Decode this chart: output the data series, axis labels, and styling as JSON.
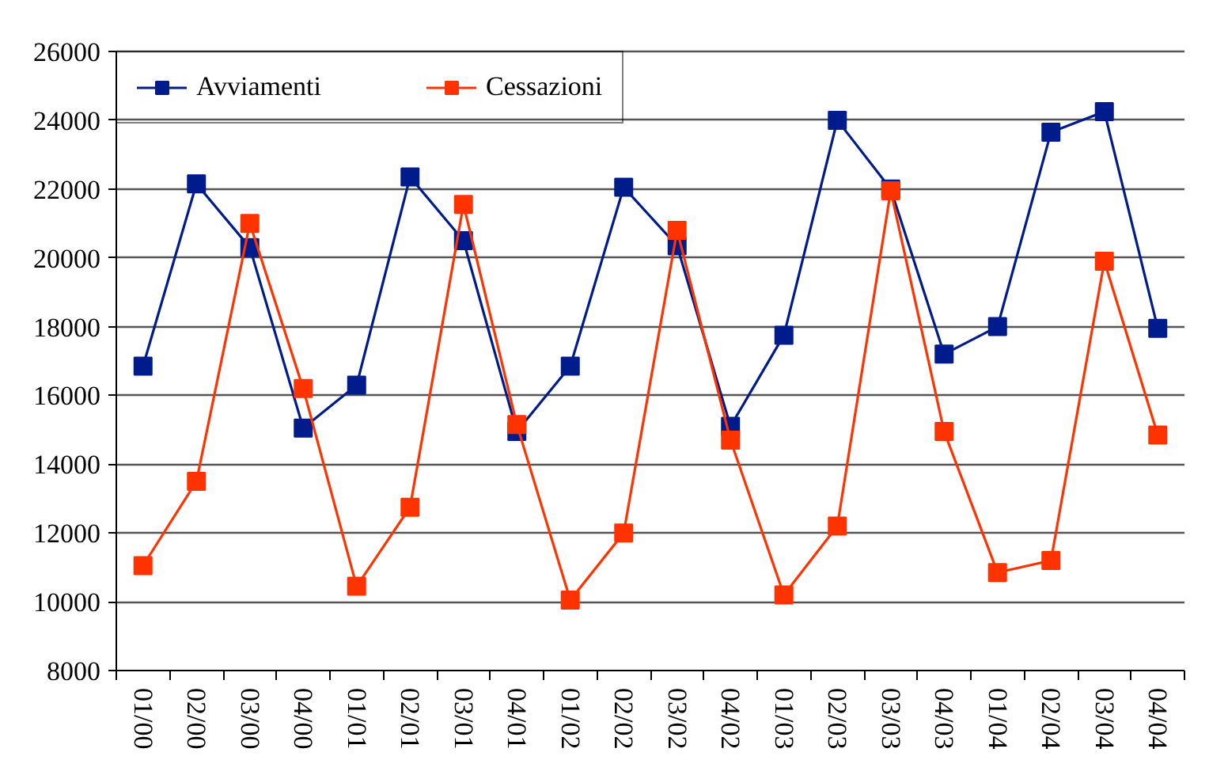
{
  "chart_data": {
    "type": "line",
    "categories": [
      "01/00",
      "02/00",
      "03/00",
      "04/00",
      "01/01",
      "02/01",
      "03/01",
      "04/01",
      "01/02",
      "02/02",
      "03/02",
      "04/02",
      "01/03",
      "02/03",
      "03/03",
      "04/03",
      "01/04",
      "02/04",
      "03/04",
      "04/04"
    ],
    "series": [
      {
        "name": "Avviamenti",
        "color": "#001c8c",
        "values": [
          16850,
          22150,
          20300,
          15050,
          16300,
          22350,
          20500,
          14950,
          16850,
          22050,
          20350,
          15100,
          17750,
          24000,
          22000,
          17200,
          18000,
          23650,
          24250,
          17950
        ]
      },
      {
        "name": "Cessazioni",
        "color": "#ff3300",
        "values": [
          11050,
          13500,
          21000,
          16200,
          10450,
          12750,
          21550,
          15150,
          10050,
          12000,
          20800,
          14700,
          10200,
          12200,
          21950,
          14950,
          10850,
          11200,
          19900,
          14850
        ]
      }
    ],
    "ylim": [
      8000,
      26000
    ],
    "yticks": [
      8000,
      10000,
      12000,
      14000,
      16000,
      18000,
      20000,
      22000,
      24000,
      26000
    ],
    "grid": "y",
    "legend": "top left",
    "marker": "square",
    "line_style": "solid"
  }
}
